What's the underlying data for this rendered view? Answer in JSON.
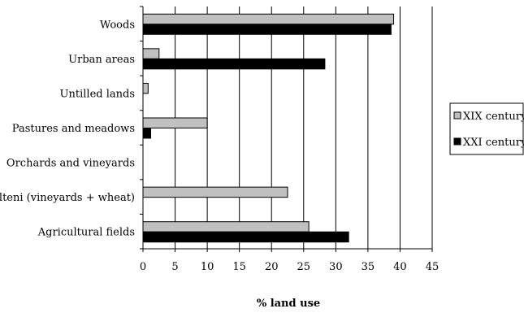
{
  "chart_data": {
    "type": "bar",
    "orientation": "horizontal",
    "categories": [
      "Woods",
      "Urban areas",
      "Untilled lands",
      "Pastures and meadows",
      "Orchards and vineyards",
      "Alteni (vineyards + wheat)",
      "Agricultural fields"
    ],
    "series": [
      {
        "name": "XIX century",
        "color": "#c0c0c0",
        "values": [
          39,
          2.5,
          0.8,
          10,
          0,
          22.5,
          25.8
        ]
      },
      {
        "name": "XXI century",
        "color": "#000000",
        "values": [
          38.6,
          28.3,
          0,
          1.2,
          0,
          0,
          32
        ]
      }
    ],
    "xlabel": "% land use",
    "xlim": [
      0,
      45
    ],
    "xticks": [
      0,
      5,
      10,
      15,
      20,
      25,
      30,
      35,
      40,
      45
    ],
    "grid": "vertical",
    "legend": "right"
  }
}
